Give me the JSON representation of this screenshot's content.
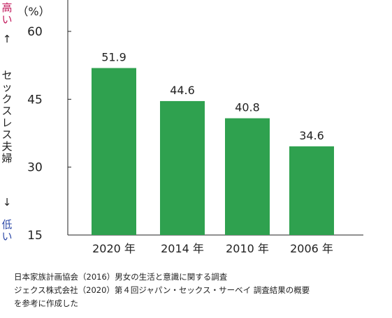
{
  "chart_data": {
    "type": "bar",
    "categories": [
      "2020 年",
      "2014 年",
      "2010 年",
      "2006 年"
    ],
    "values": [
      51.9,
      44.6,
      40.8,
      34.6
    ],
    "value_labels": [
      "51.9",
      "44.6",
      "40.8",
      "34.6"
    ],
    "ylim": [
      15,
      60
    ],
    "yticks": [
      15,
      30,
      45,
      60
    ],
    "unit_label": "（%）",
    "ylabel": "セックスレス夫婦",
    "ylabel_high": "高い",
    "ylabel_low": "低い",
    "arrow_up": "↑",
    "arrow_down": "↓",
    "grid": false,
    "legend": "none",
    "bar_color": "#2fa14f",
    "axis_color": "#222222",
    "high_color": "#c2185b",
    "low_color": "#2e4aa8"
  },
  "source": {
    "lines": [
      "日本家族計画協会（2016）男女の生活と意識に関する調査",
      "ジェクス株式会社（2020）第４回ジャパン・セックス・サーベイ 調査結果の概要",
      "を参考に作成した"
    ]
  }
}
